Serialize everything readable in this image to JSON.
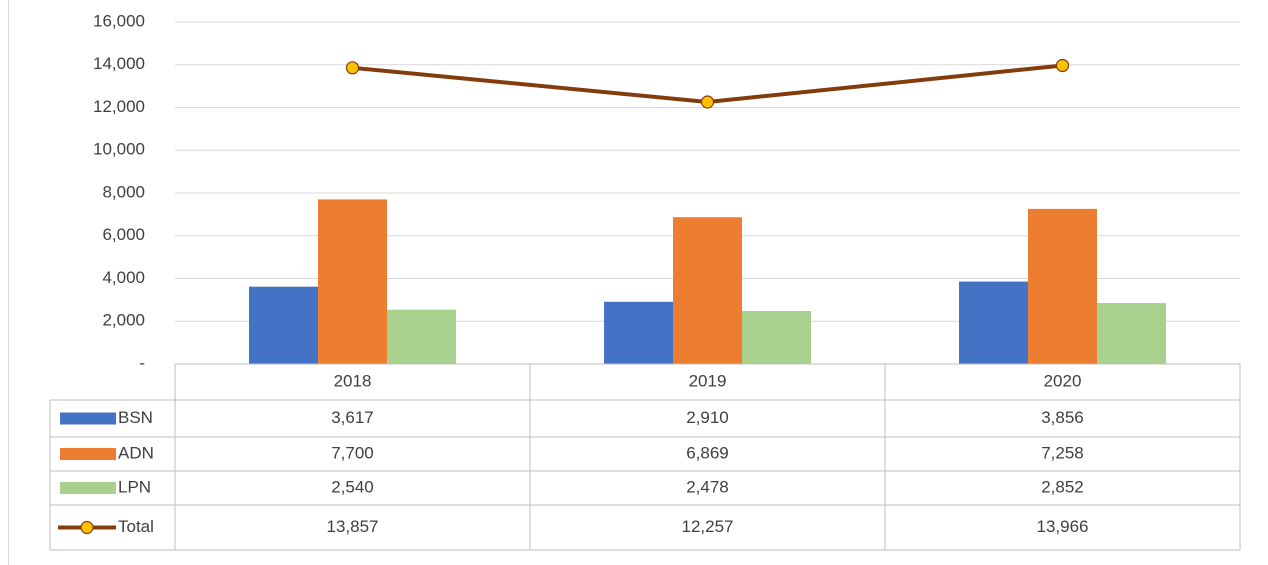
{
  "chart_data": {
    "type": "bar",
    "categories": [
      "2018",
      "2019",
      "2020"
    ],
    "series": [
      {
        "name": "BSN",
        "color": "#4472c4",
        "values": [
          3617,
          2910,
          3856
        ],
        "value_labels": [
          "3,617",
          "2,910",
          "3,856"
        ]
      },
      {
        "name": "ADN",
        "color": "#ed7d31",
        "values": [
          7700,
          6869,
          7258
        ],
        "value_labels": [
          "7,700",
          "6,869",
          "7,258"
        ]
      },
      {
        "name": "LPN",
        "color": "#a9d18e",
        "values": [
          2540,
          2478,
          2852
        ],
        "value_labels": [
          "2,540",
          "2,478",
          "2,852"
        ]
      },
      {
        "name": "Total",
        "type": "line",
        "color": "#843c0c",
        "marker_color": "#ffc000",
        "values": [
          13857,
          12257,
          13966
        ],
        "value_labels": [
          "13,857",
          "12,257",
          "13,966"
        ]
      }
    ],
    "ylim": [
      0,
      16000
    ],
    "yticks": [
      {
        "value": 0,
        "label": "-"
      },
      {
        "value": 2000,
        "label": "2,000"
      },
      {
        "value": 4000,
        "label": "4,000"
      },
      {
        "value": 6000,
        "label": "6,000"
      },
      {
        "value": 8000,
        "label": "8,000"
      },
      {
        "value": 10000,
        "label": "10,000"
      },
      {
        "value": 12000,
        "label": "12,000"
      },
      {
        "value": 14000,
        "label": "14,000"
      },
      {
        "value": 16000,
        "label": "16,000"
      }
    ],
    "grid": true,
    "data_table": true
  }
}
